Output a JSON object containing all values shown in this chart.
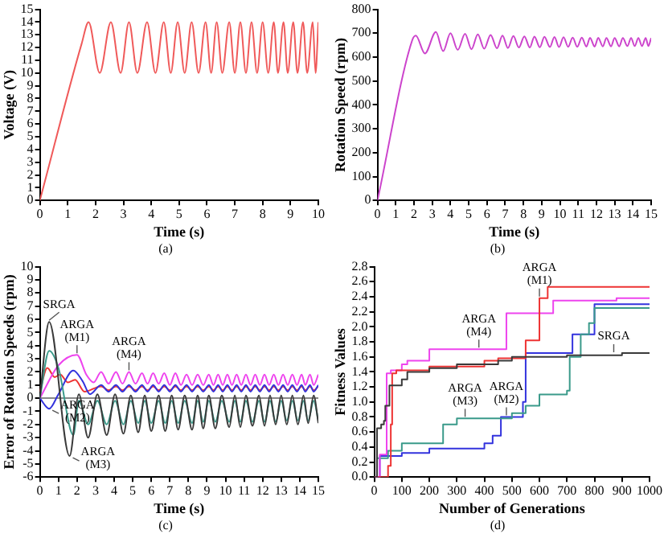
{
  "chart_data": [
    {
      "type": "line",
      "xlabel": "Time (s)",
      "ylabel": "Voltage (V)",
      "annotations": [
        "(a)"
      ],
      "xlim": [
        0,
        10
      ],
      "xticks": [
        0,
        1,
        2,
        3,
        4,
        5,
        6,
        7,
        8,
        9,
        10
      ],
      "ylim": [
        0,
        15
      ],
      "yticks": [
        0,
        1,
        2,
        3,
        4,
        5,
        6,
        7,
        8,
        9,
        10,
        11,
        12,
        13,
        14,
        15
      ],
      "series": [
        {
          "color": "#f05a5a",
          "x": [
            0,
            1.5,
            1.75,
            2.15,
            2.55,
            2.9,
            3.2,
            3.5,
            3.85,
            4.15,
            4.45,
            4.7,
            4.95,
            5.2,
            5.45,
            5.7,
            5.95,
            6.15,
            6.35,
            6.55,
            6.8,
            7.0,
            7.2,
            7.4,
            7.6,
            7.8,
            8.0,
            8.2,
            8.4,
            8.55,
            8.75,
            8.9,
            9.1,
            9.25,
            9.45,
            9.6,
            9.8,
            9.9,
            10
          ],
          "values": [
            0,
            12.3,
            14,
            10,
            14,
            10,
            14,
            10,
            14,
            10,
            14,
            10,
            14,
            10,
            14,
            10,
            14,
            10,
            14,
            10,
            14,
            10,
            14,
            10,
            14,
            10,
            14,
            10,
            14,
            10,
            14,
            10,
            14,
            10,
            14,
            10,
            14,
            10,
            14
          ]
        }
      ]
    },
    {
      "type": "line",
      "xlabel": "Time (s)",
      "ylabel": "Rotation Speed (rpm)",
      "annotations": [
        "(b)"
      ],
      "xlim": [
        0,
        15
      ],
      "xticks": [
        0,
        1,
        2,
        3,
        4,
        5,
        6,
        7,
        8,
        9,
        10,
        11,
        12,
        13,
        14,
        15
      ],
      "ylim": [
        0,
        800
      ],
      "yticks": [
        0,
        100,
        200,
        300,
        400,
        500,
        600,
        700,
        800
      ],
      "series": [
        {
          "color": "#cc44cc",
          "x": [
            0,
            1.9,
            2.1,
            2.6,
            3.2,
            3.6,
            4.0,
            4.4,
            4.8,
            5.15,
            5.5,
            5.85,
            6.2,
            6.55,
            6.85,
            7.15,
            7.45,
            7.75,
            8.05,
            8.35,
            8.6,
            8.9,
            9.15,
            9.45,
            9.7,
            9.95,
            10.2,
            10.45,
            10.7,
            10.95,
            11.2,
            11.45,
            11.65,
            11.9,
            12.1,
            12.35,
            12.55,
            12.8,
            13.0,
            13.25,
            13.45,
            13.7,
            13.9,
            14.1,
            14.3,
            14.5,
            14.7,
            14.85,
            15
          ],
          "values": [
            0,
            670,
            690,
            615,
            705,
            625,
            700,
            630,
            698,
            633,
            695,
            635,
            693,
            637,
            690,
            638,
            688,
            640,
            687,
            640,
            686,
            641,
            685,
            642,
            684,
            642,
            683,
            643,
            682,
            643,
            682,
            644,
            681,
            644,
            681,
            645,
            680,
            645,
            680,
            645,
            680,
            646,
            680,
            646,
            680,
            646,
            680,
            646,
            680
          ]
        }
      ]
    },
    {
      "type": "line",
      "xlabel": "Time (s)",
      "ylabel": "Error of Rotation Speeds (rpm)",
      "xlim": [
        0,
        15
      ],
      "xticks": [
        0,
        1,
        2,
        3,
        4,
        5,
        6,
        7,
        8,
        9,
        10,
        11,
        12,
        13,
        14,
        15
      ],
      "ylim": [
        -6,
        10
      ],
      "yticks": [
        -6,
        -5,
        -4,
        -3,
        -2,
        -1,
        0,
        1,
        2,
        3,
        4,
        5,
        6,
        7,
        8,
        9,
        10
      ],
      "ref_lines": [
        {
          "axis": "y",
          "value": 0,
          "color": "#888888"
        }
      ],
      "annotations": [
        "(c)",
        {
          "text": "SRGA",
          "x": 0.5,
          "y": 5.8
        },
        {
          "text": "ARGA (M1)",
          "x": 2.0,
          "y": 3.3
        },
        {
          "text": "ARGA (M4)",
          "x": 4.8,
          "y": 2.0
        },
        {
          "text": "ARGA (M2)",
          "x": 0.5,
          "y": -0.8
        },
        {
          "text": "ARGA (M3)",
          "x": 1.6,
          "y": -4.4
        }
      ],
      "series": [
        {
          "color": "#3a3a3a",
          "x": [
            0,
            0.5,
            1.6,
            2.1,
            2.6,
            3.1,
            3.6,
            4.05,
            4.5,
            4.9,
            5.3,
            5.65,
            6.0,
            6.4,
            6.75,
            7.1,
            7.45,
            7.8,
            8.2,
            8.5,
            8.8,
            9.1,
            9.45,
            9.8,
            10.2,
            10.5,
            10.8,
            11.1,
            11.45,
            11.8,
            12.1,
            12.4,
            12.7,
            13.0,
            13.3,
            13.6,
            13.9,
            14.2,
            14.45,
            14.75,
            15
          ],
          "values": [
            0,
            5.8,
            -4.4,
            0.3,
            -3.0,
            0.3,
            -2.8,
            0.3,
            -2.7,
            0.2,
            -2.6,
            0.2,
            -2.5,
            0.2,
            -2.5,
            0.2,
            -2.4,
            0.2,
            -2.4,
            0.2,
            -2.3,
            0.2,
            -2.3,
            0.2,
            -2.2,
            0.2,
            -2.2,
            0.2,
            -2.1,
            0.2,
            -2.1,
            0.2,
            -2.0,
            0.2,
            -2.0,
            0.2,
            -2.0,
            0.2,
            -1.9,
            0.2,
            -1.9
          ]
        },
        {
          "color": "#3a9a8a",
          "x": [
            0,
            0.5,
            1.0,
            1.8,
            2.1,
            2.6,
            3.1,
            3.6,
            4.05,
            4.5,
            4.9,
            5.3,
            5.65,
            6.0,
            6.4,
            6.75,
            7.1,
            7.45,
            7.8,
            8.2,
            8.5,
            8.8,
            9.1,
            9.45,
            9.8,
            10.2,
            10.5,
            10.8,
            11.1,
            11.45,
            11.8,
            12.1,
            12.4,
            12.7,
            13.0,
            13.3,
            13.6,
            13.9,
            14.2,
            14.45,
            14.75,
            15
          ],
          "values": [
            0,
            3.6,
            2.3,
            -2.8,
            -0.2,
            -2.0,
            -0.2,
            -2.0,
            -0.2,
            -2.0,
            -0.2,
            -1.9,
            -0.2,
            -1.9,
            -0.2,
            -1.9,
            -0.2,
            -1.9,
            -0.2,
            -1.9,
            -0.2,
            -1.8,
            -0.2,
            -1.8,
            -0.2,
            -1.8,
            -0.2,
            -1.8,
            -0.2,
            -1.8,
            -0.2,
            -1.8,
            -0.2,
            -1.8,
            -0.2,
            -1.7,
            -0.2,
            -1.7,
            -0.2,
            -1.7,
            -0.2,
            -1.7
          ]
        },
        {
          "color": "#ee44ee",
          "x": [
            0,
            1.0,
            2.0,
            2.5,
            2.9,
            3.3,
            3.7,
            4.1,
            4.45,
            4.8,
            5.15,
            5.5,
            5.8,
            6.1,
            6.4,
            6.7,
            7.0,
            7.3,
            7.6,
            7.9,
            8.2,
            8.5,
            8.8,
            9.1,
            9.35,
            9.6,
            9.85,
            10.1,
            10.35,
            10.6,
            10.85,
            11.1,
            11.35,
            11.6,
            11.85,
            12.1,
            12.35,
            12.6,
            12.85,
            13.1,
            13.35,
            13.6,
            13.85,
            14.1,
            14.3,
            14.55,
            14.75,
            15
          ],
          "values": [
            0,
            2.5,
            3.3,
            1.8,
            1.2,
            2.0,
            1.1,
            2.0,
            1.1,
            2.0,
            1.1,
            1.9,
            1.1,
            1.9,
            1.1,
            1.9,
            1.0,
            1.9,
            1.0,
            1.8,
            1.0,
            1.8,
            1.0,
            1.8,
            1.0,
            1.8,
            1.0,
            1.8,
            1.0,
            1.8,
            1.0,
            1.8,
            1.0,
            1.8,
            1.0,
            1.8,
            1.0,
            1.8,
            1.0,
            1.8,
            1.0,
            1.8,
            1.0,
            1.8,
            1.0,
            1.8,
            1.0,
            1.8
          ]
        },
        {
          "color": "#3333dd",
          "x": [
            0,
            0.5,
            1.0,
            1.8,
            2.3,
            2.7,
            3.3,
            3.7,
            4.1,
            4.45,
            4.8,
            5.15,
            5.5,
            5.8,
            6.1,
            6.4,
            6.7,
            7.0,
            7.3,
            7.6,
            7.9,
            8.2,
            8.5,
            8.8,
            9.1,
            9.35,
            9.6,
            9.85,
            10.1,
            10.35,
            10.6,
            10.85,
            11.1,
            11.35,
            11.6,
            11.85,
            12.1,
            12.35,
            12.6,
            12.85,
            13.1,
            13.35,
            13.6,
            13.85,
            14.1,
            14.3,
            14.55,
            14.75,
            15
          ],
          "values": [
            0,
            -0.8,
            0.3,
            2.1,
            1.3,
            0.3,
            1.0,
            0.5,
            1.0,
            0.5,
            1.0,
            0.5,
            1.0,
            0.5,
            1.0,
            0.5,
            1.0,
            0.5,
            1.0,
            0.5,
            1.0,
            0.5,
            1.0,
            0.5,
            1.0,
            0.5,
            1.0,
            0.5,
            1.0,
            0.5,
            1.0,
            0.5,
            1.0,
            0.5,
            1.0,
            0.5,
            1.0,
            0.5,
            1.0,
            0.5,
            1.0,
            0.5,
            1.0,
            0.5,
            1.0,
            0.5,
            1.0,
            0.5,
            1.0
          ]
        },
        {
          "color": "#ee3333",
          "x": [
            0,
            0.4,
            0.8,
            1.1,
            1.5,
            1.9,
            2.4,
            3.3,
            3.7,
            4.1,
            4.45,
            4.8,
            5.15,
            5.5,
            5.8,
            6.1,
            6.4,
            6.7,
            7.0,
            7.3,
            7.6,
            7.9,
            8.2,
            8.5,
            8.8,
            9.1,
            9.35,
            9.6,
            9.85,
            10.1,
            10.35,
            10.6,
            10.85,
            11.1,
            11.35,
            11.6,
            11.85,
            12.1,
            12.35,
            12.6,
            12.85,
            13.1,
            13.35,
            13.6,
            13.85,
            14.1,
            14.3,
            14.55,
            14.75,
            15
          ],
          "values": [
            0.5,
            2.3,
            1.6,
            1.8,
            1.2,
            1.4,
            0.5,
            0.9,
            0.6,
            0.9,
            0.6,
            0.9,
            0.6,
            0.9,
            0.6,
            0.9,
            0.6,
            0.9,
            0.6,
            0.9,
            0.6,
            0.9,
            0.6,
            0.9,
            0.6,
            0.9,
            0.6,
            0.9,
            0.6,
            0.9,
            0.6,
            0.9,
            0.6,
            0.9,
            0.6,
            0.9,
            0.6,
            0.9,
            0.6,
            0.9,
            0.6,
            0.9,
            0.6,
            0.9,
            0.6,
            0.9,
            0.6,
            0.9,
            0.6,
            0.9
          ]
        }
      ]
    },
    {
      "type": "step",
      "xlabel": "Number of Generations",
      "ylabel": "Fitness Values",
      "xlim": [
        0,
        1000
      ],
      "xticks": [
        0,
        100,
        200,
        300,
        400,
        500,
        600,
        700,
        800,
        900,
        1000
      ],
      "ylim": [
        0,
        2.8
      ],
      "yticks": [
        {
          "value": 0,
          "label": "0.0"
        },
        0.2,
        0.4,
        0.6,
        0.8,
        {
          "value": 1,
          "label": "1.0"
        },
        1.2,
        1.4,
        1.6,
        1.8,
        {
          "value": 2,
          "label": "2.0"
        },
        2.2,
        2.4,
        2.6,
        2.8
      ],
      "annotations": [
        "(d)",
        {
          "text": "ARGA (M1)",
          "x": 600,
          "y": 2.38
        },
        {
          "text": "ARGA (M4)",
          "x": 380,
          "y": 1.7
        },
        {
          "text": "ARGA (M3)",
          "x": 330,
          "y": 0.78
        },
        {
          "text": "ARGA (M2)",
          "x": 480,
          "y": 0.8
        },
        {
          "text": "SRGA",
          "x": 870,
          "y": 1.64
        }
      ],
      "series": [
        {
          "color": "#3a3a3a",
          "x": [
            0,
            10,
            25,
            35,
            40,
            55,
            100,
            120,
            200,
            300,
            450,
            500,
            700,
            900,
            1000
          ],
          "values": [
            0,
            0.65,
            0.7,
            0.75,
            0.95,
            1.22,
            1.3,
            1.4,
            1.45,
            1.5,
            1.55,
            1.6,
            1.62,
            1.65,
            1.65
          ]
        },
        {
          "color": "#ee3333",
          "x": [
            0,
            50,
            60,
            65,
            80,
            200,
            400,
            450,
            550,
            600,
            630,
            1000
          ],
          "values": [
            0,
            0.15,
            0.7,
            1.38,
            1.42,
            1.47,
            1.55,
            1.58,
            1.82,
            2.38,
            2.53,
            2.53
          ]
        },
        {
          "color": "#ee44ee",
          "x": [
            0,
            20,
            45,
            60,
            100,
            120,
            200,
            480,
            650,
            880,
            1000
          ],
          "values": [
            0,
            0.3,
            1.38,
            1.42,
            1.5,
            1.55,
            1.7,
            2.18,
            2.35,
            2.38,
            2.38
          ]
        },
        {
          "color": "#3a9a8a",
          "x": [
            0,
            10,
            50,
            100,
            250,
            300,
            450,
            500,
            550,
            600,
            700,
            710,
            750,
            780,
            800,
            1000
          ],
          "values": [
            0,
            0.25,
            0.35,
            0.45,
            0.7,
            0.78,
            0.78,
            0.85,
            0.95,
            1.1,
            1.15,
            1.6,
            1.9,
            2.05,
            2.25,
            2.25
          ]
        },
        {
          "color": "#3333dd",
          "x": [
            0,
            20,
            100,
            200,
            400,
            430,
            460,
            540,
            550,
            720,
            800,
            1000
          ],
          "values": [
            0,
            0.28,
            0.32,
            0.38,
            0.45,
            0.55,
            0.8,
            1.0,
            1.65,
            1.9,
            2.3,
            2.3
          ]
        }
      ]
    }
  ]
}
